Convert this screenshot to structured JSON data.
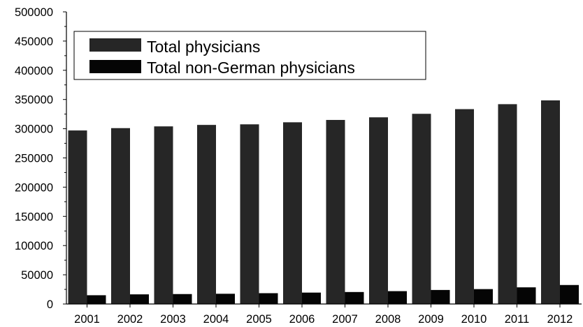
{
  "chart_data": {
    "type": "bar",
    "title": "",
    "xlabel": "",
    "ylabel": "",
    "categories": [
      "2001",
      "2002",
      "2003",
      "2004",
      "2005",
      "2006",
      "2007",
      "2008",
      "2009",
      "2010",
      "2011",
      "2012"
    ],
    "series": [
      {
        "name": "Total physicians",
        "color": "#262626",
        "values": [
          297000,
          301000,
          304000,
          306500,
          307500,
          311000,
          315000,
          319500,
          325500,
          333500,
          342000,
          348500
        ]
      },
      {
        "name": "Total non-German physicians",
        "color": "#050505",
        "values": [
          15000,
          16500,
          17000,
          17500,
          18500,
          19500,
          20500,
          22000,
          24000,
          25500,
          28500,
          32500
        ]
      }
    ],
    "ylim": [
      0,
      500000
    ],
    "yticks": [
      "0",
      "50000",
      "100000",
      "150000",
      "200000",
      "250000",
      "300000",
      "350000",
      "400000",
      "450000",
      "500000"
    ],
    "grid": false,
    "legend_position": "top-left",
    "legend": [
      "Total physicians",
      "Total non-German physicians"
    ]
  }
}
